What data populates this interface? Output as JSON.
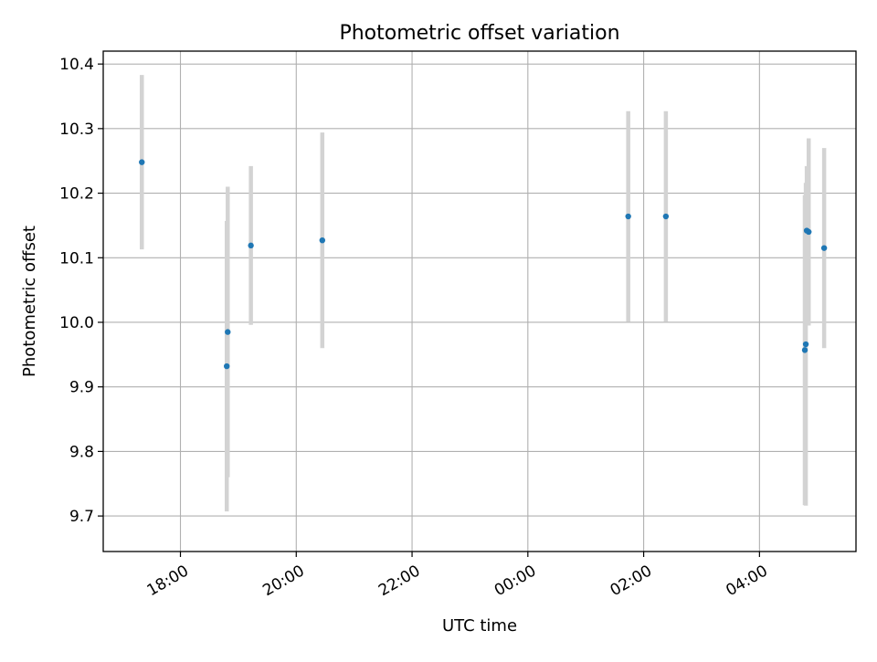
{
  "chart_data": {
    "type": "scatter",
    "title": "Photometric offset variation",
    "xlabel": "UTC time",
    "ylabel": "Photometric offset",
    "x_axis_kind": "time",
    "x_ticks": [
      "18:00",
      "20:00",
      "22:00",
      "00:00",
      "02:00",
      "04:00"
    ],
    "xlim": [
      "16:40",
      "05:40"
    ],
    "ylim": [
      9.645,
      10.42
    ],
    "y_ticks": [
      9.7,
      9.8,
      9.9,
      10.0,
      10.1,
      10.2,
      10.3,
      10.4
    ],
    "y_tick_labels": [
      "9.7",
      "9.8",
      "9.9",
      "10.0",
      "10.1",
      "10.2",
      "10.3",
      "10.4"
    ],
    "grid": true,
    "point_color": "#1f77b4",
    "errorbar_color": "#d3d3d3",
    "points": [
      {
        "x": "17:20",
        "y": 10.248,
        "yerr": 0.135
      },
      {
        "x": "18:48",
        "y": 9.932,
        "yerr": 0.225
      },
      {
        "x": "18:49",
        "y": 9.985,
        "yerr": 0.225
      },
      {
        "x": "19:13",
        "y": 10.119,
        "yerr": 0.123
      },
      {
        "x": "20:27",
        "y": 10.127,
        "yerr": 0.167
      },
      {
        "x": "01:44",
        "y": 10.164,
        "yerr": 0.163
      },
      {
        "x": "02:23",
        "y": 10.164,
        "yerr": 0.163
      },
      {
        "x": "04:47",
        "y": 9.957,
        "yerr": 0.24
      },
      {
        "x": "04:48",
        "y": 9.966,
        "yerr": 0.25
      },
      {
        "x": "04:49",
        "y": 10.142,
        "yerr": 0.1
      },
      {
        "x": "04:51",
        "y": 10.14,
        "yerr": 0.145
      },
      {
        "x": "05:07",
        "y": 10.115,
        "yerr": 0.155
      }
    ]
  }
}
